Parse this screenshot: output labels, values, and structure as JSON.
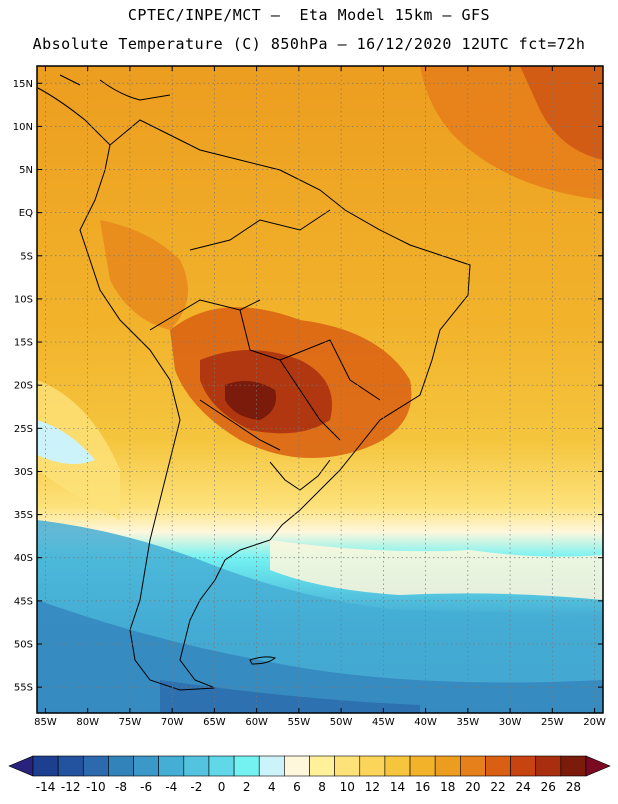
{
  "header": {
    "line1": "CPTEC/INPE/MCT –  Eta Model 15km – GFS",
    "line2": "Absolute Temperature (C) 850hPa – 16/12/2020 12UTC fct=72h"
  },
  "map": {
    "lat_labels": [
      "15N",
      "10N",
      "5N",
      "EQ",
      "5S",
      "10S",
      "15S",
      "20S",
      "25S",
      "30S",
      "35S",
      "40S",
      "45S",
      "50S",
      "55S"
    ],
    "lon_labels": [
      "85W",
      "80W",
      "75W",
      "70W",
      "65W",
      "60W",
      "55W",
      "50W",
      "45W",
      "40W",
      "35W",
      "30W",
      "25W",
      "20W"
    ],
    "lon_range": [
      -86,
      -19
    ],
    "lat_range": [
      -58,
      17
    ]
  },
  "colorbar": {
    "labels": [
      "-14",
      "-12",
      "-10",
      "-8",
      "-6",
      "-4",
      "-2",
      "0",
      "2",
      "4",
      "6",
      "8",
      "10",
      "12",
      "14",
      "16",
      "18",
      "20",
      "22",
      "24",
      "26",
      "28"
    ],
    "colors": [
      "#1c3f8f",
      "#23529e",
      "#2c6aad",
      "#3383bb",
      "#3c98c9",
      "#45aed5",
      "#53c3df",
      "#60d8e8",
      "#74f2f2",
      "#cdf3fa",
      "#fff7dc",
      "#fff09a",
      "#fde27a",
      "#fad55a",
      "#f5c53e",
      "#f2b32b",
      "#ec9d1f",
      "#e5801a",
      "#d95f12",
      "#c74310",
      "#a82e0f",
      "#7a1b0c"
    ],
    "below_color": "#2a237d",
    "above_color": "#7a0a22"
  }
}
